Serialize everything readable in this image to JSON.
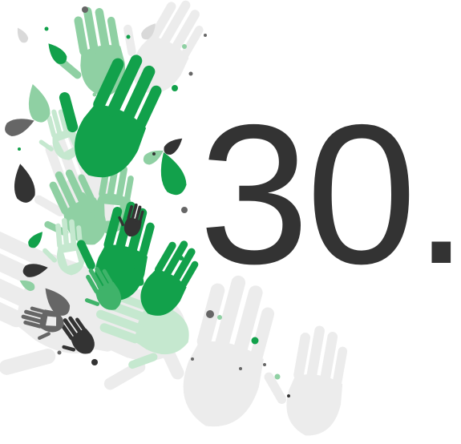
{
  "headline": {
    "number": "30."
  },
  "colors": {
    "number": "#333333",
    "green_bright": "#12a14b",
    "green_mid": "#3fb36a",
    "green_soft": "#8fd0a3",
    "green_pale": "#c5e8cf",
    "grey_dark": "#333333",
    "grey_mid": "#666666",
    "grey_light": "#d9d9d9",
    "grey_pale": "#ececec"
  },
  "icons": {
    "artwork": "colorful-handprints-icon"
  }
}
